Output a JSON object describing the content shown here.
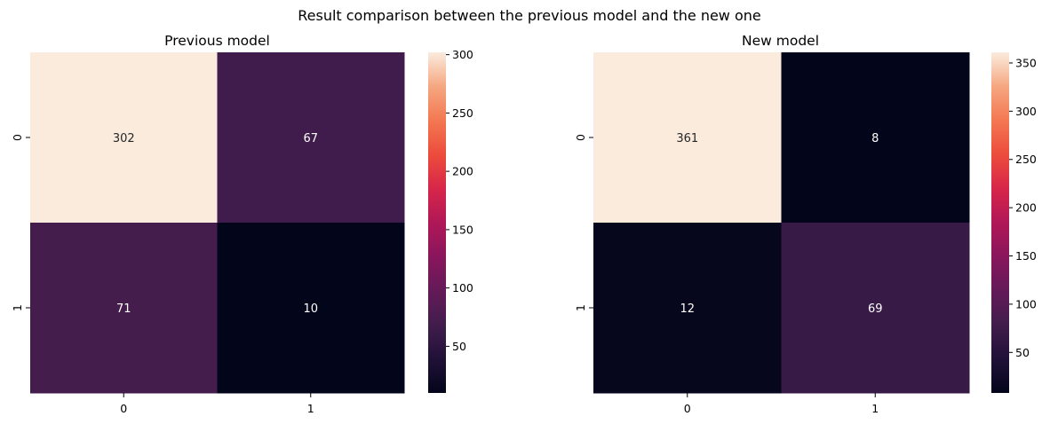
{
  "suptitle": "Result comparison between the previous model and the new one",
  "chart_data": [
    {
      "type": "heatmap",
      "title": "Previous model",
      "x_categories": [
        "0",
        "1"
      ],
      "y_categories": [
        "0",
        "1"
      ],
      "values": [
        [
          302,
          67
        ],
        [
          71,
          10
        ]
      ],
      "colormap": "rocket",
      "colorbar_range": [
        10,
        302
      ],
      "colorbar_ticks": [
        50,
        100,
        150,
        200,
        250,
        300
      ],
      "xlabel": "",
      "ylabel": ""
    },
    {
      "type": "heatmap",
      "title": "New model",
      "x_categories": [
        "0",
        "1"
      ],
      "y_categories": [
        "0",
        "1"
      ],
      "values": [
        [
          361,
          8
        ],
        [
          12,
          69
        ]
      ],
      "colormap": "rocket",
      "colorbar_range": [
        8,
        361
      ],
      "colorbar_ticks": [
        50,
        100,
        150,
        200,
        250,
        300,
        350
      ],
      "xlabel": "",
      "ylabel": ""
    }
  ]
}
